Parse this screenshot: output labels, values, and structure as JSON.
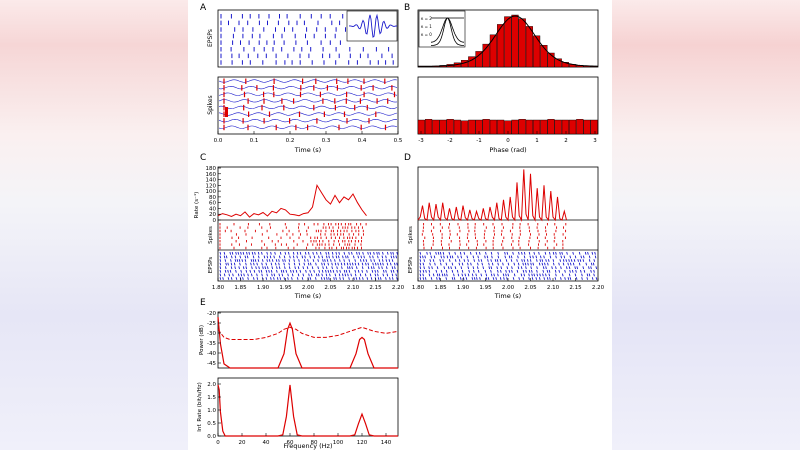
{
  "panels": {
    "A": {
      "letter": "A",
      "top_ylabel": "EPSPs",
      "bottom_ylabel": "Spikes",
      "xlabel": "Time (s)",
      "xticks": [
        "0.0",
        "0.1",
        "0.2",
        "0.3",
        "0.4",
        "0.5"
      ]
    },
    "B": {
      "letter": "B",
      "xlabel": "Phase (rad)",
      "xticks": [
        "-3",
        "-2",
        "-1",
        "0",
        "1",
        "2",
        "3"
      ],
      "inset_legend": [
        "κ = 2",
        "κ = 1",
        "κ = 0"
      ]
    },
    "C": {
      "letter": "C",
      "rate_ylabel": "Rate (s⁻¹)",
      "spikes_ylabel": "Spikes",
      "epsps_ylabel": "EPSPs",
      "xlabel": "Time (s)",
      "rate_yticks": [
        "180",
        "160",
        "140",
        "120",
        "100",
        "80",
        "60",
        "40",
        "20",
        "0"
      ],
      "xticks": [
        "1.80",
        "1.85",
        "1.90",
        "1.95",
        "2.00",
        "2.05",
        "2.10",
        "2.15",
        "2.20"
      ]
    },
    "D": {
      "letter": "D",
      "spikes_ylabel": "Spikes",
      "epsps_ylabel": "EPSPs",
      "xlabel": "Time (s)",
      "xticks": [
        "1.80",
        "1.85",
        "1.90",
        "1.95",
        "2.00",
        "2.05",
        "2.10",
        "2.15",
        "2.20"
      ]
    },
    "E": {
      "letter": "E",
      "power_ylabel": "Power (dB)",
      "power_yticks": [
        "-20",
        "-25",
        "-30",
        "-35",
        "-40",
        "-45"
      ],
      "info_ylabel": "Inf. Rate (bit/s/Hz)",
      "info_yticks": [
        "2.0",
        "1.5",
        "1.0",
        "0.5",
        "0.0"
      ],
      "xlabel": "Frequency (Hz)",
      "xticks": [
        "0",
        "20",
        "40",
        "60",
        "80",
        "100",
        "120",
        "140"
      ]
    }
  },
  "colors": {
    "spike_red": "#dd0000",
    "epsp_blue": "#1a1acc",
    "axis": "#000000",
    "bar_edge": "#000000"
  },
  "chart_data": [
    {
      "panel": "A",
      "type": "raster",
      "xlabel": "Time (s)",
      "xlim": [
        0,
        0.5
      ],
      "rows_top": 8,
      "rows_bottom": 8
    },
    {
      "panel": "B-top",
      "type": "bar",
      "xlabel": "",
      "xlim": [
        -3.14,
        3.14
      ],
      "categories": [
        -3.0,
        -2.75,
        -2.5,
        -2.25,
        -2.0,
        -1.75,
        -1.5,
        -1.25,
        -1.0,
        -0.75,
        -0.5,
        -0.25,
        0.0,
        0.25,
        0.5,
        0.75,
        1.0,
        1.25,
        1.5,
        1.75,
        2.0,
        2.25,
        2.5,
        2.75,
        3.0
      ],
      "values": [
        0.01,
        0.01,
        0.02,
        0.03,
        0.05,
        0.08,
        0.13,
        0.2,
        0.3,
        0.44,
        0.62,
        0.82,
        0.97,
        1.0,
        0.93,
        0.78,
        0.6,
        0.42,
        0.27,
        0.16,
        0.09,
        0.05,
        0.03,
        0.02,
        0.01
      ]
    },
    {
      "panel": "B-bottom",
      "type": "bar",
      "xlabel": "Phase (rad)",
      "xlim": [
        -3.14,
        3.14
      ],
      "values": [
        0.2,
        0.21,
        0.2,
        0.2,
        0.21,
        0.2,
        0.19,
        0.2,
        0.2,
        0.21,
        0.2,
        0.2,
        0.19,
        0.2,
        0.21,
        0.2,
        0.2,
        0.2,
        0.21,
        0.2,
        0.2,
        0.2,
        0.21,
        0.2,
        0.2
      ]
    },
    {
      "panel": "C",
      "type": "line",
      "ylabel": "Rate (s⁻¹)",
      "xlabel": "Time (s)",
      "xlim": [
        1.8,
        2.2
      ],
      "ylim": [
        0,
        180
      ],
      "x": [
        1.8,
        1.81,
        1.82,
        1.83,
        1.84,
        1.85,
        1.86,
        1.87,
        1.88,
        1.89,
        1.9,
        1.91,
        1.92,
        1.93,
        1.94,
        1.95,
        1.96,
        1.97,
        1.98,
        1.99,
        2.0,
        2.01,
        2.02,
        2.03,
        2.04,
        2.05,
        2.06,
        2.07,
        2.08,
        2.09,
        2.1,
        2.11,
        2.12,
        2.13
      ],
      "y": [
        15,
        22,
        18,
        12,
        20,
        15,
        28,
        10,
        22,
        18,
        26,
        14,
        30,
        25,
        40,
        35,
        20,
        18,
        15,
        22,
        25,
        45,
        120,
        95,
        70,
        55,
        85,
        60,
        80,
        70,
        90,
        60,
        35,
        15
      ]
    },
    {
      "panel": "D",
      "type": "line",
      "xlabel": "Time (s)",
      "xlim": [
        1.8,
        2.2
      ],
      "ylim": [
        0,
        180
      ],
      "x": [
        1.8,
        1.805,
        1.81,
        1.815,
        1.82,
        1.825,
        1.83,
        1.835,
        1.84,
        1.845,
        1.85,
        1.855,
        1.86,
        1.865,
        1.87,
        1.875,
        1.88,
        1.885,
        1.89,
        1.895,
        1.9,
        1.905,
        1.91,
        1.915,
        1.92,
        1.925,
        1.93,
        1.935,
        1.94,
        1.945,
        1.95,
        1.955,
        1.96,
        1.965,
        1.97,
        1.975,
        1.98,
        1.985,
        1.99,
        1.995,
        2.0,
        2.005,
        2.01,
        2.015,
        2.02,
        2.025,
        2.03,
        2.035,
        2.04,
        2.045,
        2.05,
        2.055,
        2.06,
        2.065,
        2.07,
        2.075,
        2.08,
        2.085,
        2.09,
        2.095,
        2.1,
        2.105,
        2.11,
        2.115,
        2.12,
        2.125,
        2.13
      ],
      "y": [
        0,
        10,
        50,
        5,
        0,
        60,
        10,
        0,
        55,
        10,
        0,
        60,
        8,
        0,
        40,
        5,
        0,
        45,
        5,
        0,
        50,
        8,
        0,
        35,
        5,
        0,
        30,
        5,
        0,
        40,
        5,
        0,
        45,
        10,
        0,
        60,
        5,
        0,
        70,
        10,
        0,
        80,
        10,
        0,
        130,
        15,
        0,
        175,
        20,
        0,
        160,
        15,
        0,
        110,
        10,
        0,
        120,
        10,
        0,
        100,
        10,
        0,
        80,
        5,
        0,
        30,
        0
      ]
    },
    {
      "panel": "E-power",
      "type": "line",
      "ylabel": "Power (dB)",
      "xlim": [
        0,
        150
      ],
      "ylim": [
        -47,
        -20
      ],
      "series": [
        {
          "x": [
            0,
            2,
            5,
            10,
            20,
            30,
            40,
            50,
            55,
            58,
            60,
            62,
            65,
            70,
            80,
            90,
            100,
            110,
            115,
            118,
            120,
            122,
            125,
            130,
            140,
            150
          ],
          "y": [
            -22,
            -35,
            -45,
            -47,
            -47,
            -47,
            -47,
            -47,
            -40,
            -28,
            -25,
            -28,
            -40,
            -47,
            -47,
            -47,
            -47,
            -47,
            -40,
            -33,
            -32,
            -33,
            -40,
            -47,
            -47,
            -47
          ]
        },
        {
          "x": [
            0,
            5,
            10,
            20,
            30,
            40,
            50,
            55,
            60,
            65,
            70,
            80,
            90,
            100,
            110,
            115,
            120,
            125,
            130,
            140,
            150
          ],
          "y": [
            -28,
            -32,
            -33,
            -33,
            -33,
            -32,
            -30,
            -28,
            -27,
            -28,
            -30,
            -32,
            -32,
            -31,
            -29,
            -28,
            -27,
            -28,
            -29,
            -30,
            -29
          ]
        }
      ]
    },
    {
      "panel": "E-info",
      "type": "line",
      "ylabel": "Inf. Rate (bit/s/Hz)",
      "xlabel": "Frequency (Hz)",
      "xlim": [
        0,
        150
      ],
      "ylim": [
        0,
        2.3
      ],
      "x": [
        0,
        1,
        2,
        4,
        6,
        10,
        20,
        40,
        50,
        54,
        57,
        60,
        63,
        66,
        70,
        80,
        100,
        110,
        114,
        117,
        120,
        123,
        126,
        130,
        140,
        150
      ],
      "y": [
        2.1,
        1.9,
        1.0,
        0.2,
        0.0,
        0.0,
        0.0,
        0.0,
        0.0,
        0.05,
        0.8,
        2.1,
        0.8,
        0.05,
        0.0,
        0.0,
        0.0,
        0.0,
        0.05,
        0.5,
        0.9,
        0.5,
        0.05,
        0.0,
        0.0,
        0.0
      ]
    }
  ]
}
